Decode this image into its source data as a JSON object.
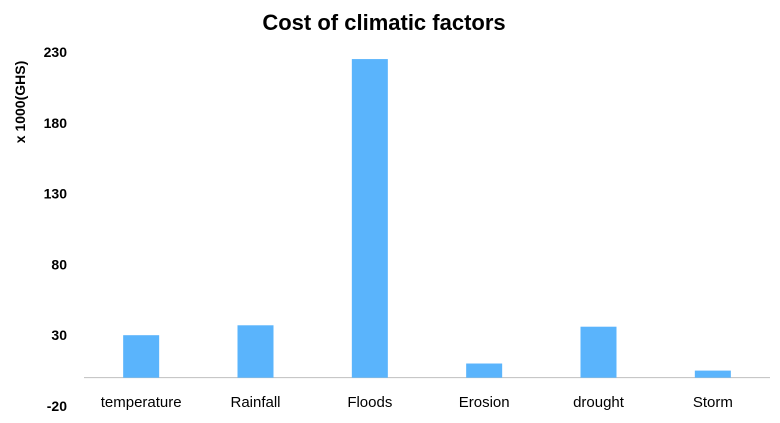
{
  "chart_data": {
    "type": "bar",
    "title": "Cost of climatic factors",
    "xlabel": "",
    "ylabel": "x 1000(GHS)",
    "categories": [
      "temperature",
      "Rainfall",
      "Floods",
      "Erosion",
      "drought",
      "Storm"
    ],
    "values": [
      30,
      37,
      225,
      10,
      36,
      5
    ],
    "ylim": [
      -20,
      230
    ],
    "yticks": [
      "230",
      "180",
      "130",
      "80",
      "30",
      "-20"
    ],
    "bar_color": "#5ab4fc",
    "axis_color": "#bfbfbf",
    "grid": false,
    "legend": "none"
  }
}
